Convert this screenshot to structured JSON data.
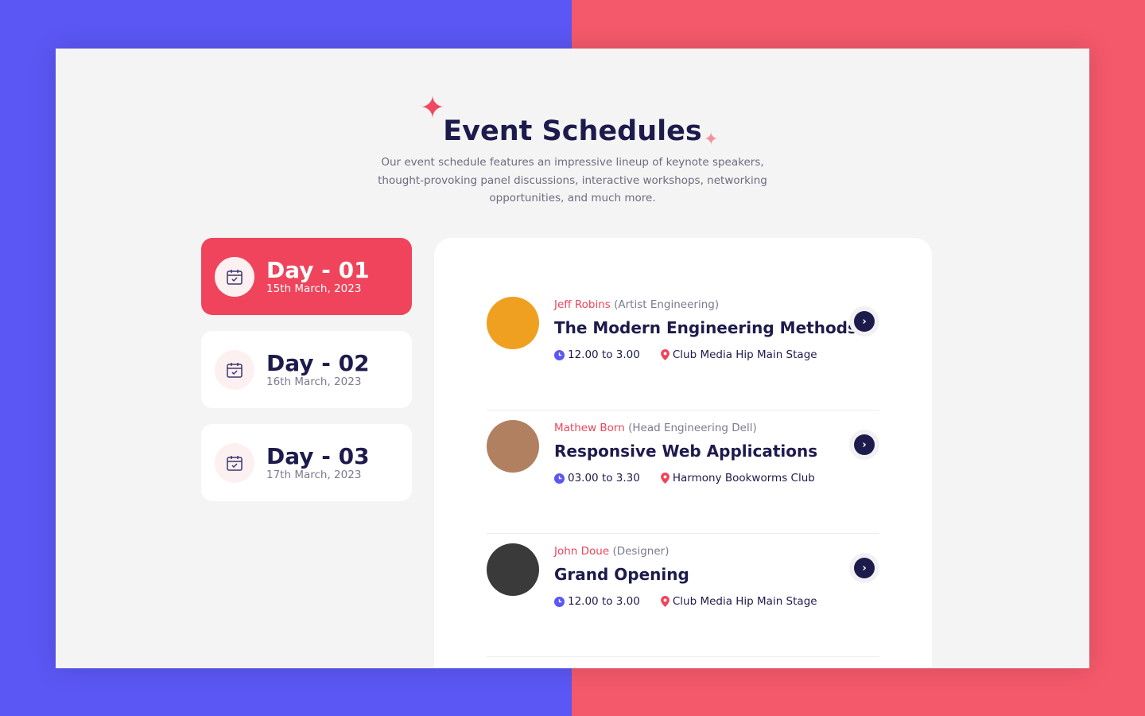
{
  "header": {
    "title": "Event Schedules",
    "description": "Our event schedule features an impressive lineup of keynote speakers, thought-provoking panel discussions, interactive workshops, networking opportunities, and much more."
  },
  "days": [
    {
      "label": "Day - 01",
      "date": "15th March, 2023",
      "active": true
    },
    {
      "label": "Day - 02",
      "date": "16th March, 2023",
      "active": false
    },
    {
      "label": "Day - 03",
      "date": "17th March, 2023",
      "active": false
    }
  ],
  "sessions": [
    {
      "speaker": "Jeff Robins",
      "role": "(Artist Engineering)",
      "title": "The Modern Engineering Methods",
      "time": "12.00 to 3.00",
      "venue": "Club Media Hip Main Stage",
      "avatar_color": "#f0a020"
    },
    {
      "speaker": "Mathew Born",
      "role": "(Head Engineering Dell)",
      "title": "Responsive Web Applications",
      "time": "03.00 to 3.30",
      "venue": "Harmony Bookworms Club",
      "avatar_color": "#b08060"
    },
    {
      "speaker": "John Doue",
      "role": "(Designer)",
      "title": "Grand Opening",
      "time": "12.00 to 3.00",
      "venue": "Club Media Hip Main Stage",
      "avatar_color": "#3a3a3a"
    }
  ],
  "colors": {
    "accent": "#ef445b",
    "navy": "#1d1b4c",
    "purple": "#5b57f5"
  }
}
